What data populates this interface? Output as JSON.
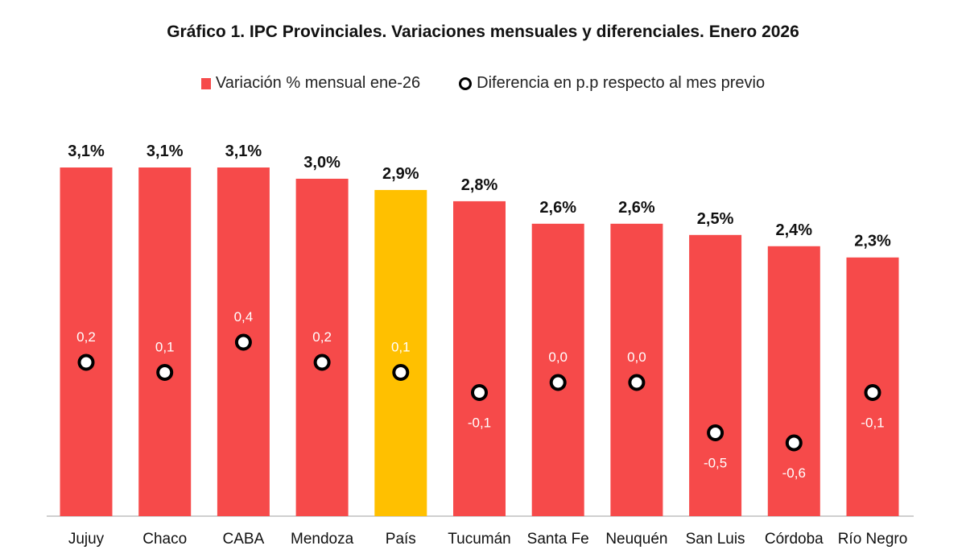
{
  "chart_data": {
    "type": "bar",
    "title": "Gráfico 1. IPC Provinciales. Variaciones mensuales y diferenciales. Enero 2026",
    "categories": [
      "Jujuy",
      "Chaco",
      "CABA",
      "Mendoza",
      "País",
      "Tucumán",
      "Santa Fe",
      "Neuquén",
      "San Luis",
      "Córdoba",
      "Río Negro"
    ],
    "series": [
      {
        "name": "Variación % mensual ene-26",
        "values": [
          3.1,
          3.1,
          3.1,
          3.0,
          2.9,
          2.8,
          2.6,
          2.6,
          2.5,
          2.4,
          2.3
        ],
        "labels": [
          "3,1%",
          "3,1%",
          "3,1%",
          "3,0%",
          "2,9%",
          "2,8%",
          "2,6%",
          "2,6%",
          "2,5%",
          "2,4%",
          "2,3%"
        ],
        "color": "#f64a4a",
        "highlight_category": "País",
        "highlight_color": "#ffc000"
      },
      {
        "name": "Diferencia en p.p respecto al mes previo",
        "values": [
          0.2,
          0.1,
          0.4,
          0.2,
          0.1,
          -0.1,
          0.0,
          0.0,
          -0.5,
          -0.6,
          -0.1
        ],
        "labels": [
          "0,2",
          "0,1",
          "0,4",
          "0,2",
          "0,1",
          "-0,1",
          "0,0",
          "0,0",
          "-0,5",
          "-0,6",
          "-0,1"
        ],
        "marker": "circle-outline"
      }
    ],
    "legend_position": "top-center",
    "grid": false
  }
}
